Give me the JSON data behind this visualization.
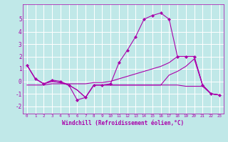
{
  "xlabel": "Windchill (Refroidissement éolien,°C)",
  "bg_color": "#c0e8e8",
  "grid_color": "#ffffff",
  "line_color": "#aa00aa",
  "xlim": [
    -0.5,
    23.5
  ],
  "ylim": [
    -2.6,
    6.2
  ],
  "xticks": [
    0,
    1,
    2,
    3,
    4,
    5,
    6,
    7,
    8,
    9,
    10,
    11,
    12,
    13,
    14,
    15,
    16,
    17,
    18,
    19,
    20,
    21,
    22,
    23
  ],
  "yticks": [
    -2,
    -1,
    0,
    1,
    2,
    3,
    4,
    5
  ],
  "line1_x": [
    0,
    1,
    2,
    3,
    4,
    5,
    6,
    7,
    8,
    9,
    10,
    11,
    12,
    13,
    14,
    15,
    16,
    17,
    18,
    19,
    20,
    21,
    22,
    23
  ],
  "line1_y": [
    1.3,
    0.2,
    -0.2,
    0.1,
    0.0,
    -0.3,
    -1.5,
    -1.3,
    -0.3,
    -0.3,
    -0.2,
    1.5,
    2.5,
    3.6,
    5.0,
    5.3,
    5.5,
    5.0,
    2.0,
    2.0,
    2.0,
    -0.3,
    -1.0,
    -1.1
  ],
  "line2_x": [
    0,
    1,
    2,
    3,
    4,
    5,
    6,
    7,
    8,
    9,
    10,
    11,
    12,
    13,
    14,
    15,
    16,
    17,
    18,
    19,
    20,
    21,
    22,
    23
  ],
  "line2_y": [
    -0.3,
    -0.3,
    -0.3,
    -0.2,
    -0.2,
    -0.2,
    -0.2,
    -0.2,
    -0.1,
    -0.1,
    0.0,
    0.2,
    0.4,
    0.6,
    0.8,
    1.0,
    1.2,
    1.5,
    2.0,
    2.0,
    2.0,
    -0.3,
    -1.0,
    -1.1
  ],
  "line3_x": [
    0,
    1,
    2,
    3,
    4,
    5,
    6,
    7,
    8,
    9,
    10,
    11,
    12,
    13,
    14,
    15,
    16,
    17,
    18,
    19,
    20,
    21,
    22,
    23
  ],
  "line3_y": [
    1.3,
    0.2,
    -0.2,
    0.0,
    -0.1,
    -0.3,
    -0.7,
    -1.3,
    -0.3,
    -0.3,
    -0.3,
    -0.3,
    -0.3,
    -0.3,
    -0.3,
    -0.3,
    -0.3,
    -0.3,
    -0.3,
    -0.4,
    -0.4,
    -0.4,
    -1.0,
    -1.1
  ],
  "line4_x": [
    0,
    1,
    2,
    3,
    4,
    5,
    6,
    7,
    8,
    9,
    10,
    11,
    12,
    13,
    14,
    15,
    16,
    17,
    18,
    19,
    20,
    21,
    22,
    23
  ],
  "line4_y": [
    1.3,
    0.2,
    -0.2,
    0.0,
    -0.1,
    -0.3,
    -0.7,
    -1.3,
    -0.3,
    -0.3,
    -0.3,
    -0.3,
    -0.3,
    -0.3,
    -0.3,
    -0.3,
    -0.3,
    0.5,
    0.8,
    1.2,
    1.8,
    -0.3,
    -1.0,
    -1.1
  ]
}
